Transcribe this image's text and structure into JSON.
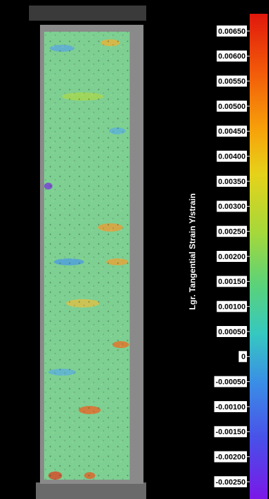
{
  "colorbar": {
    "label": "Lgr. Tangential Strain Y/strain",
    "ticks": [
      {
        "value": 0.0065,
        "label": "0.00650"
      },
      {
        "value": 0.006,
        "label": "0.00600"
      },
      {
        "value": 0.0055,
        "label": "0.00550"
      },
      {
        "value": 0.005,
        "label": "0.00500"
      },
      {
        "value": 0.0045,
        "label": "0.00450"
      },
      {
        "value": 0.004,
        "label": "0.00400"
      },
      {
        "value": 0.0035,
        "label": "0.00350"
      },
      {
        "value": 0.003,
        "label": "0.00300"
      },
      {
        "value": 0.0025,
        "label": "0.00250"
      },
      {
        "value": 0.002,
        "label": "0.00200"
      },
      {
        "value": 0.0015,
        "label": "0.00150"
      },
      {
        "value": 0.001,
        "label": "0.00100"
      },
      {
        "value": 0.0005,
        "label": "0.00050"
      },
      0,
      {
        "value": -0.0005,
        "label": "-0.00050"
      },
      {
        "value": -0.001,
        "label": "-0.00100"
      },
      {
        "value": -0.0015,
        "label": "-0.00150"
      },
      {
        "value": -0.002,
        "label": "-0.00200"
      },
      {
        "value": -0.0025,
        "label": "-0.00250"
      }
    ]
  }
}
